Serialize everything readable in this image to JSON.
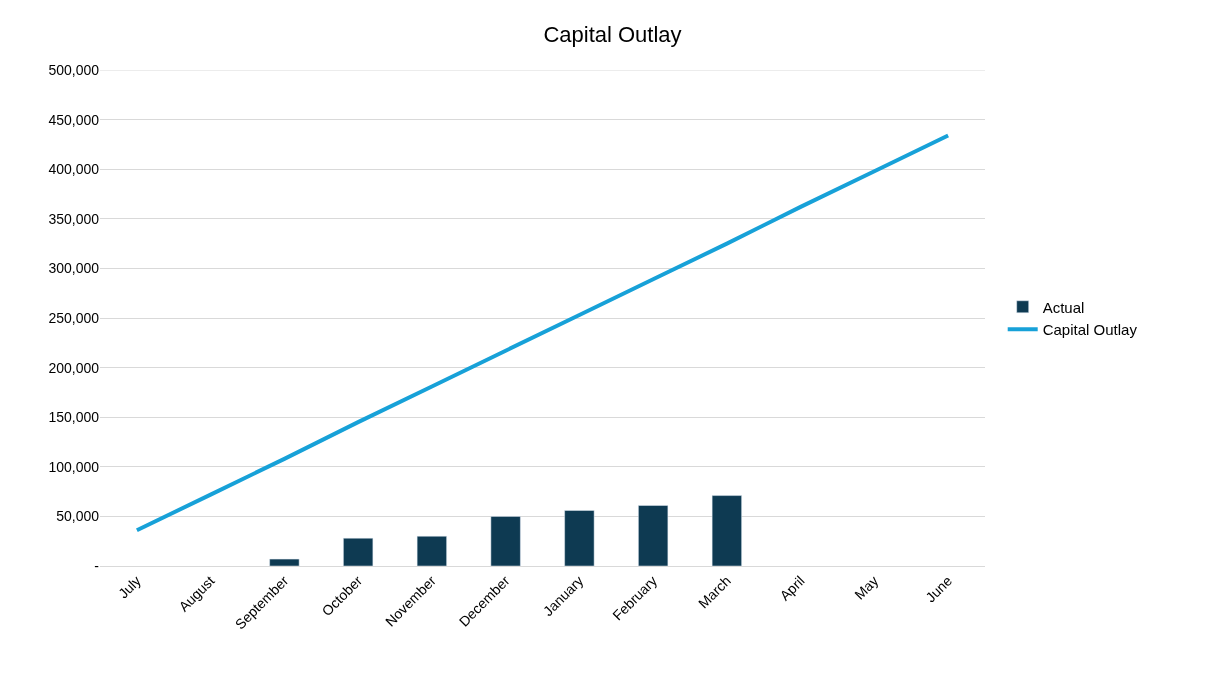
{
  "chart_data": {
    "type": "bar",
    "title": "Capital Outlay",
    "categories": [
      "July",
      "August",
      "September",
      "October",
      "November",
      "December",
      "January",
      "February",
      "March",
      "April",
      "May",
      "June"
    ],
    "series": [
      {
        "name": "Actual",
        "color": "#0e3a52",
        "values": [
          null,
          null,
          7000,
          28000,
          30000,
          50000,
          56000,
          61000,
          71000,
          null,
          null,
          null
        ]
      },
      {
        "name": "Capital Outlay",
        "type": "line",
        "color": "#17a1d8",
        "marker": "none",
        "line_style": "solid",
        "values": [
          36000,
          72000,
          108000,
          145000,
          181000,
          217000,
          253000,
          289000,
          325000,
          362000,
          398000,
          434000
        ]
      }
    ],
    "ylim": [
      0,
      500000
    ],
    "yticks": [
      {
        "value": 0,
        "label": "-"
      },
      {
        "value": 50000,
        "label": "50,000"
      },
      {
        "value": 100000,
        "label": "100,000"
      },
      {
        "value": 150000,
        "label": "150,000"
      },
      {
        "value": 200000,
        "label": "200,000"
      },
      {
        "value": 250000,
        "label": "250,000"
      },
      {
        "value": 300000,
        "label": "300,000"
      },
      {
        "value": 350000,
        "label": "350,000"
      },
      {
        "value": 400000,
        "label": "400,000"
      },
      {
        "value": 450000,
        "label": "450,000"
      },
      {
        "value": 500000,
        "label": "500,000"
      }
    ],
    "grid": "y",
    "legend": "right"
  }
}
